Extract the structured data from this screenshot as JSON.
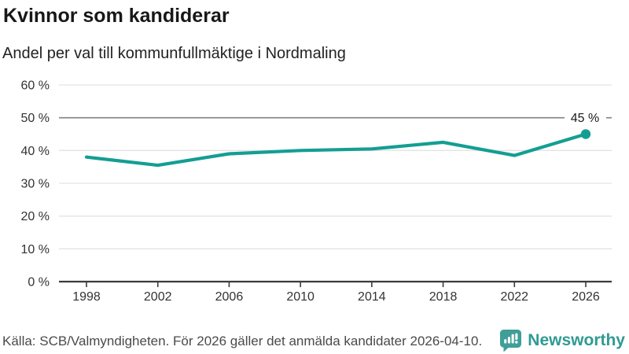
{
  "header": {
    "title": "Kvinnor som kandiderar",
    "subtitle": "Andel per val till kommunfullmäktige i Nordmaling"
  },
  "chart_data": {
    "type": "line",
    "title": "Kvinnor som kandiderar",
    "subtitle": "Andel per val till kommunfullmäktige i Nordmaling",
    "x": [
      1998,
      2002,
      2006,
      2010,
      2014,
      2018,
      2022,
      2026
    ],
    "values": [
      38,
      35.5,
      39,
      40,
      40.5,
      42.5,
      38.5,
      45
    ],
    "end_label": "45 %",
    "xlabel": "",
    "ylabel": "",
    "ylim": [
      0,
      60
    ],
    "yticks": [
      0,
      10,
      20,
      30,
      40,
      50,
      60
    ],
    "ytick_suffix": " %",
    "reference_line": 50,
    "grid": true,
    "legend": false,
    "colors": {
      "line": "#149e93",
      "marker": "#149e93",
      "reference_line": "#828282",
      "grid": "#e3e3e3",
      "axis": "#3c3c3c",
      "tick_text": "#333333",
      "end_label_text": "#1a1a1a"
    }
  },
  "footer": {
    "source": "Källa: SCB/Valmyndigheten. För 2026 gäller det anmälda kandidater 2026-04-10.",
    "brand": "Newsworthy",
    "brand_color": "#2f9a93",
    "brand_icon": "bar-chart-speech-bubble-icon"
  }
}
